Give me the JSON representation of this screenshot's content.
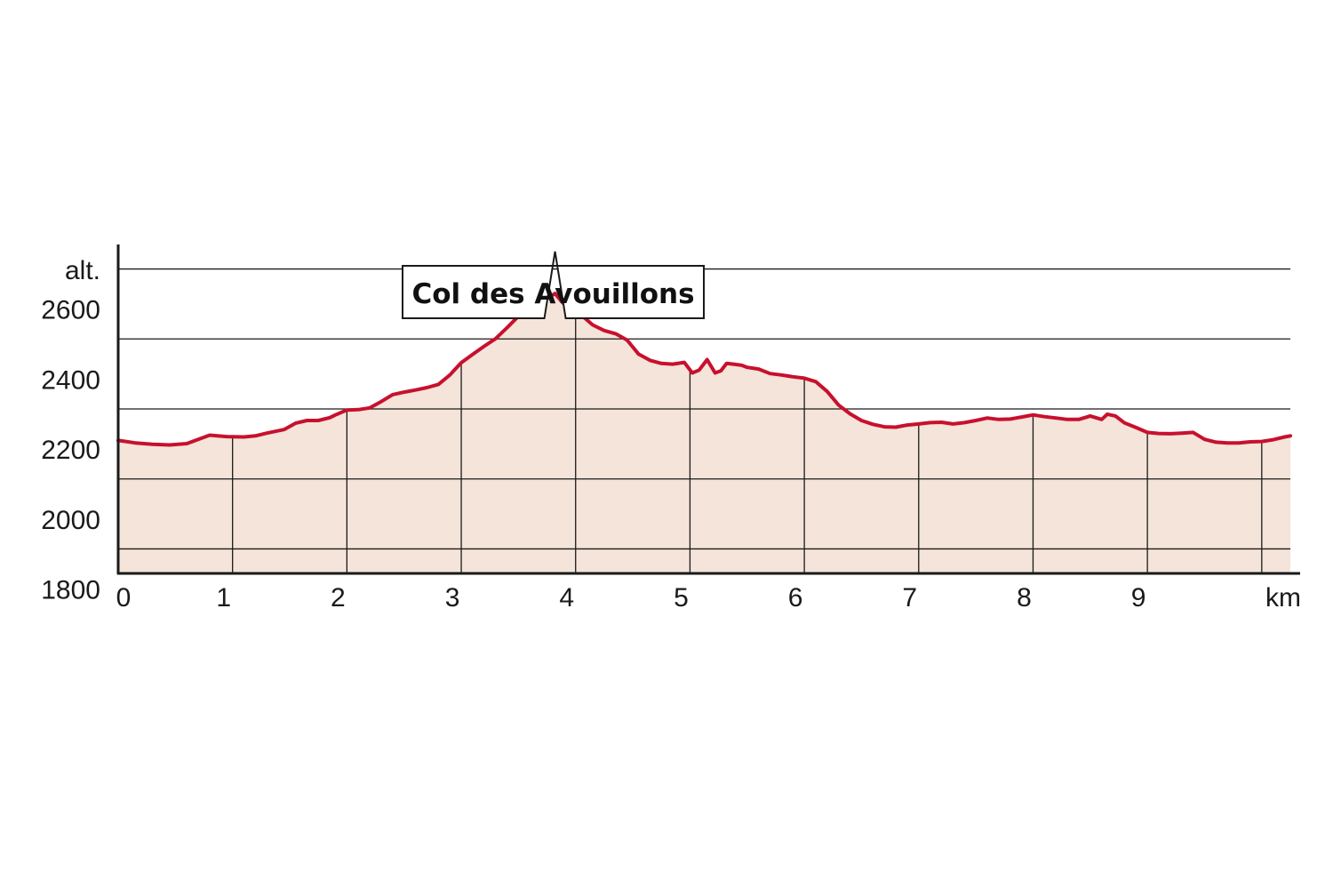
{
  "chart_data": {
    "type": "area",
    "xlabel": "km",
    "ylabel": "alt.",
    "xlim": [
      0,
      10.25
    ],
    "ylim": [
      1865,
      2805
    ],
    "x_ticks": [
      "0",
      "1",
      "2",
      "3",
      "4",
      "5",
      "6",
      "7",
      "8",
      "9"
    ],
    "y_ticks": [
      "1800",
      "2000",
      "2200",
      "2400",
      "2600"
    ],
    "gridlines_y": [
      1935,
      2135,
      2335,
      2535,
      2735,
      2935
    ],
    "grid": true,
    "colors": {
      "line": "#c8102e",
      "fill": "#f4e4d9",
      "axis": "#1a1a1a",
      "grid": "#1a1a1a"
    },
    "annotation": {
      "label": "Col des Avouillons",
      "x": 3.82,
      "y": 2785
    },
    "series": [
      {
        "x": [
          0,
          0.15,
          0.3,
          0.45,
          0.6,
          0.7,
          0.8,
          0.95,
          1.1,
          1.2,
          1.3,
          1.45,
          1.55,
          1.65,
          1.75,
          1.85,
          1.9,
          2.0,
          2.1,
          2.2,
          2.3,
          2.4,
          2.5,
          2.6,
          2.7,
          2.8,
          2.9,
          3.0,
          3.1,
          3.2,
          3.3,
          3.4,
          3.5,
          3.6,
          3.7,
          3.78,
          3.82,
          3.88,
          3.95,
          4.05,
          4.15,
          4.25,
          4.35,
          4.45,
          4.55,
          4.65,
          4.75,
          4.85,
          4.95,
          5.02,
          5.08,
          5.15,
          5.22,
          5.27,
          5.32,
          5.38,
          5.45,
          5.5,
          5.6,
          5.7,
          5.8,
          5.9,
          6.0,
          6.1,
          6.2,
          6.3,
          6.4,
          6.5,
          6.6,
          6.7,
          6.8,
          6.9,
          7.0,
          7.1,
          7.2,
          7.3,
          7.4,
          7.5,
          7.6,
          7.7,
          7.8,
          7.9,
          8.0,
          8.1,
          8.2,
          8.3,
          8.4,
          8.5,
          8.6,
          8.65,
          8.72,
          8.8,
          8.9,
          9.0,
          9.1,
          9.2,
          9.3,
          9.4,
          9.5,
          9.6,
          9.7,
          9.8,
          9.9,
          10.0,
          10.1,
          10.2,
          10.25
        ],
        "values": [
          2245,
          2238,
          2234,
          2232,
          2236,
          2248,
          2260,
          2256,
          2255,
          2258,
          2266,
          2276,
          2294,
          2302,
          2302,
          2310,
          2318,
          2332,
          2333,
          2338,
          2356,
          2376,
          2383,
          2389,
          2396,
          2405,
          2432,
          2467,
          2491,
          2514,
          2536,
          2567,
          2600,
          2630,
          2650,
          2657,
          2665,
          2641,
          2620,
          2603,
          2575,
          2559,
          2550,
          2532,
          2492,
          2474,
          2465,
          2463,
          2468,
          2438,
          2446,
          2476,
          2438,
          2444,
          2465,
          2463,
          2460,
          2454,
          2449,
          2436,
          2432,
          2427,
          2423,
          2413,
          2385,
          2346,
          2321,
          2302,
          2291,
          2284,
          2283,
          2289,
          2292,
          2296,
          2297,
          2292,
          2296,
          2302,
          2309,
          2305,
          2306,
          2312,
          2318,
          2313,
          2309,
          2305,
          2305,
          2315,
          2305,
          2320,
          2315,
          2295,
          2282,
          2268,
          2265,
          2264,
          2266,
          2268,
          2248,
          2240,
          2238,
          2238,
          2241,
          2242,
          2247,
          2255,
          2258
        ]
      }
    ]
  }
}
